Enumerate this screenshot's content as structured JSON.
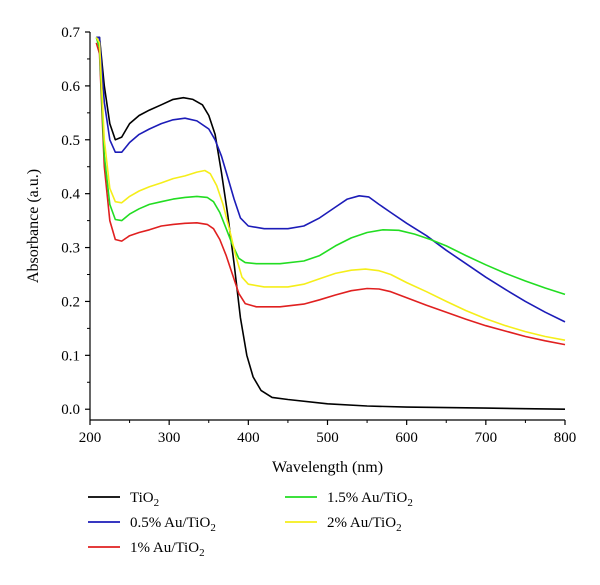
{
  "chart_data": {
    "type": "line",
    "title": "",
    "xlabel": "Wavelength (nm)",
    "ylabel": "Absorbance (a.u.)",
    "xlim": [
      200,
      800
    ],
    "ylim": [
      -0.02,
      0.7
    ],
    "xticks": [
      200,
      300,
      400,
      500,
      600,
      700,
      800
    ],
    "yticks": [
      0.0,
      0.1,
      0.2,
      0.3,
      0.4,
      0.5,
      0.6,
      0.7
    ],
    "xtick_labels": [
      "200",
      "300",
      "400",
      "500",
      "600",
      "700",
      "800"
    ],
    "ytick_labels": [
      "0.0",
      "0.1",
      "0.2",
      "0.3",
      "0.4",
      "0.5",
      "0.6",
      "0.7"
    ],
    "grid": false,
    "legend_position": "bottom",
    "series": [
      {
        "name": "TiO",
        "name_sub": "2",
        "color": "#000000",
        "points": [
          [
            208,
            0.69
          ],
          [
            212,
            0.69
          ],
          [
            218,
            0.6
          ],
          [
            225,
            0.53
          ],
          [
            232,
            0.5
          ],
          [
            240,
            0.505
          ],
          [
            250,
            0.53
          ],
          [
            262,
            0.545
          ],
          [
            275,
            0.555
          ],
          [
            290,
            0.565
          ],
          [
            305,
            0.575
          ],
          [
            318,
            0.578
          ],
          [
            330,
            0.575
          ],
          [
            342,
            0.565
          ],
          [
            350,
            0.545
          ],
          [
            358,
            0.51
          ],
          [
            366,
            0.44
          ],
          [
            374,
            0.36
          ],
          [
            382,
            0.27
          ],
          [
            390,
            0.17
          ],
          [
            398,
            0.1
          ],
          [
            406,
            0.06
          ],
          [
            416,
            0.035
          ],
          [
            430,
            0.022
          ],
          [
            450,
            0.018
          ],
          [
            500,
            0.01
          ],
          [
            550,
            0.006
          ],
          [
            600,
            0.004
          ],
          [
            650,
            0.003
          ],
          [
            700,
            0.002
          ],
          [
            750,
            0.001
          ],
          [
            800,
            0.0
          ]
        ]
      },
      {
        "name": "0.5% Au/TiO",
        "name_sub": "2",
        "color": "#1c1cb8",
        "points": [
          [
            208,
            0.69
          ],
          [
            212,
            0.69
          ],
          [
            218,
            0.57
          ],
          [
            225,
            0.5
          ],
          [
            232,
            0.477
          ],
          [
            240,
            0.477
          ],
          [
            250,
            0.495
          ],
          [
            262,
            0.51
          ],
          [
            275,
            0.52
          ],
          [
            290,
            0.53
          ],
          [
            305,
            0.537
          ],
          [
            320,
            0.54
          ],
          [
            335,
            0.535
          ],
          [
            350,
            0.52
          ],
          [
            358,
            0.5
          ],
          [
            366,
            0.47
          ],
          [
            374,
            0.43
          ],
          [
            382,
            0.39
          ],
          [
            390,
            0.355
          ],
          [
            400,
            0.34
          ],
          [
            420,
            0.335
          ],
          [
            450,
            0.335
          ],
          [
            470,
            0.34
          ],
          [
            490,
            0.355
          ],
          [
            510,
            0.375
          ],
          [
            525,
            0.39
          ],
          [
            540,
            0.396
          ],
          [
            552,
            0.394
          ],
          [
            565,
            0.38
          ],
          [
            580,
            0.365
          ],
          [
            600,
            0.345
          ],
          [
            625,
            0.322
          ],
          [
            650,
            0.295
          ],
          [
            675,
            0.27
          ],
          [
            700,
            0.245
          ],
          [
            725,
            0.222
          ],
          [
            750,
            0.2
          ],
          [
            775,
            0.18
          ],
          [
            800,
            0.162
          ]
        ]
      },
      {
        "name": "1% Au/TiO",
        "name_sub": "2",
        "color": "#e02020",
        "points": [
          [
            208,
            0.68
          ],
          [
            212,
            0.66
          ],
          [
            218,
            0.45
          ],
          [
            225,
            0.35
          ],
          [
            232,
            0.315
          ],
          [
            240,
            0.312
          ],
          [
            250,
            0.322
          ],
          [
            262,
            0.328
          ],
          [
            275,
            0.333
          ],
          [
            290,
            0.34
          ],
          [
            305,
            0.343
          ],
          [
            320,
            0.345
          ],
          [
            335,
            0.346
          ],
          [
            348,
            0.343
          ],
          [
            356,
            0.335
          ],
          [
            364,
            0.315
          ],
          [
            372,
            0.285
          ],
          [
            380,
            0.25
          ],
          [
            388,
            0.215
          ],
          [
            396,
            0.196
          ],
          [
            410,
            0.19
          ],
          [
            440,
            0.19
          ],
          [
            470,
            0.195
          ],
          [
            490,
            0.203
          ],
          [
            510,
            0.212
          ],
          [
            530,
            0.22
          ],
          [
            550,
            0.224
          ],
          [
            565,
            0.223
          ],
          [
            580,
            0.218
          ],
          [
            600,
            0.207
          ],
          [
            625,
            0.193
          ],
          [
            650,
            0.18
          ],
          [
            675,
            0.167
          ],
          [
            700,
            0.155
          ],
          [
            725,
            0.145
          ],
          [
            750,
            0.135
          ],
          [
            775,
            0.127
          ],
          [
            800,
            0.12
          ]
        ]
      },
      {
        "name": "1.5% Au/TiO",
        "name_sub": "2",
        "color": "#22dd22",
        "points": [
          [
            208,
            0.69
          ],
          [
            212,
            0.67
          ],
          [
            218,
            0.47
          ],
          [
            225,
            0.38
          ],
          [
            232,
            0.352
          ],
          [
            240,
            0.35
          ],
          [
            250,
            0.362
          ],
          [
            262,
            0.372
          ],
          [
            275,
            0.38
          ],
          [
            290,
            0.385
          ],
          [
            305,
            0.39
          ],
          [
            320,
            0.393
          ],
          [
            335,
            0.395
          ],
          [
            348,
            0.393
          ],
          [
            356,
            0.385
          ],
          [
            364,
            0.365
          ],
          [
            372,
            0.335
          ],
          [
            380,
            0.305
          ],
          [
            388,
            0.28
          ],
          [
            396,
            0.272
          ],
          [
            410,
            0.27
          ],
          [
            440,
            0.27
          ],
          [
            470,
            0.275
          ],
          [
            490,
            0.285
          ],
          [
            510,
            0.303
          ],
          [
            530,
            0.318
          ],
          [
            550,
            0.328
          ],
          [
            570,
            0.333
          ],
          [
            590,
            0.332
          ],
          [
            610,
            0.325
          ],
          [
            630,
            0.315
          ],
          [
            650,
            0.303
          ],
          [
            675,
            0.285
          ],
          [
            700,
            0.268
          ],
          [
            725,
            0.252
          ],
          [
            750,
            0.238
          ],
          [
            775,
            0.225
          ],
          [
            800,
            0.213
          ]
        ]
      },
      {
        "name": "2% Au/TiO",
        "name_sub": "2",
        "color": "#f5ee1a",
        "points": [
          [
            208,
            0.69
          ],
          [
            212,
            0.68
          ],
          [
            218,
            0.5
          ],
          [
            225,
            0.41
          ],
          [
            232,
            0.385
          ],
          [
            240,
            0.383
          ],
          [
            250,
            0.395
          ],
          [
            262,
            0.405
          ],
          [
            275,
            0.413
          ],
          [
            290,
            0.42
          ],
          [
            305,
            0.428
          ],
          [
            320,
            0.433
          ],
          [
            335,
            0.44
          ],
          [
            345,
            0.443
          ],
          [
            352,
            0.437
          ],
          [
            360,
            0.415
          ],
          [
            368,
            0.38
          ],
          [
            376,
            0.335
          ],
          [
            384,
            0.285
          ],
          [
            392,
            0.245
          ],
          [
            400,
            0.232
          ],
          [
            420,
            0.227
          ],
          [
            450,
            0.227
          ],
          [
            470,
            0.232
          ],
          [
            490,
            0.242
          ],
          [
            510,
            0.252
          ],
          [
            530,
            0.258
          ],
          [
            548,
            0.26
          ],
          [
            565,
            0.257
          ],
          [
            580,
            0.25
          ],
          [
            600,
            0.235
          ],
          [
            625,
            0.218
          ],
          [
            650,
            0.2
          ],
          [
            675,
            0.183
          ],
          [
            700,
            0.168
          ],
          [
            725,
            0.155
          ],
          [
            750,
            0.144
          ],
          [
            775,
            0.135
          ],
          [
            800,
            0.128
          ]
        ]
      }
    ]
  }
}
